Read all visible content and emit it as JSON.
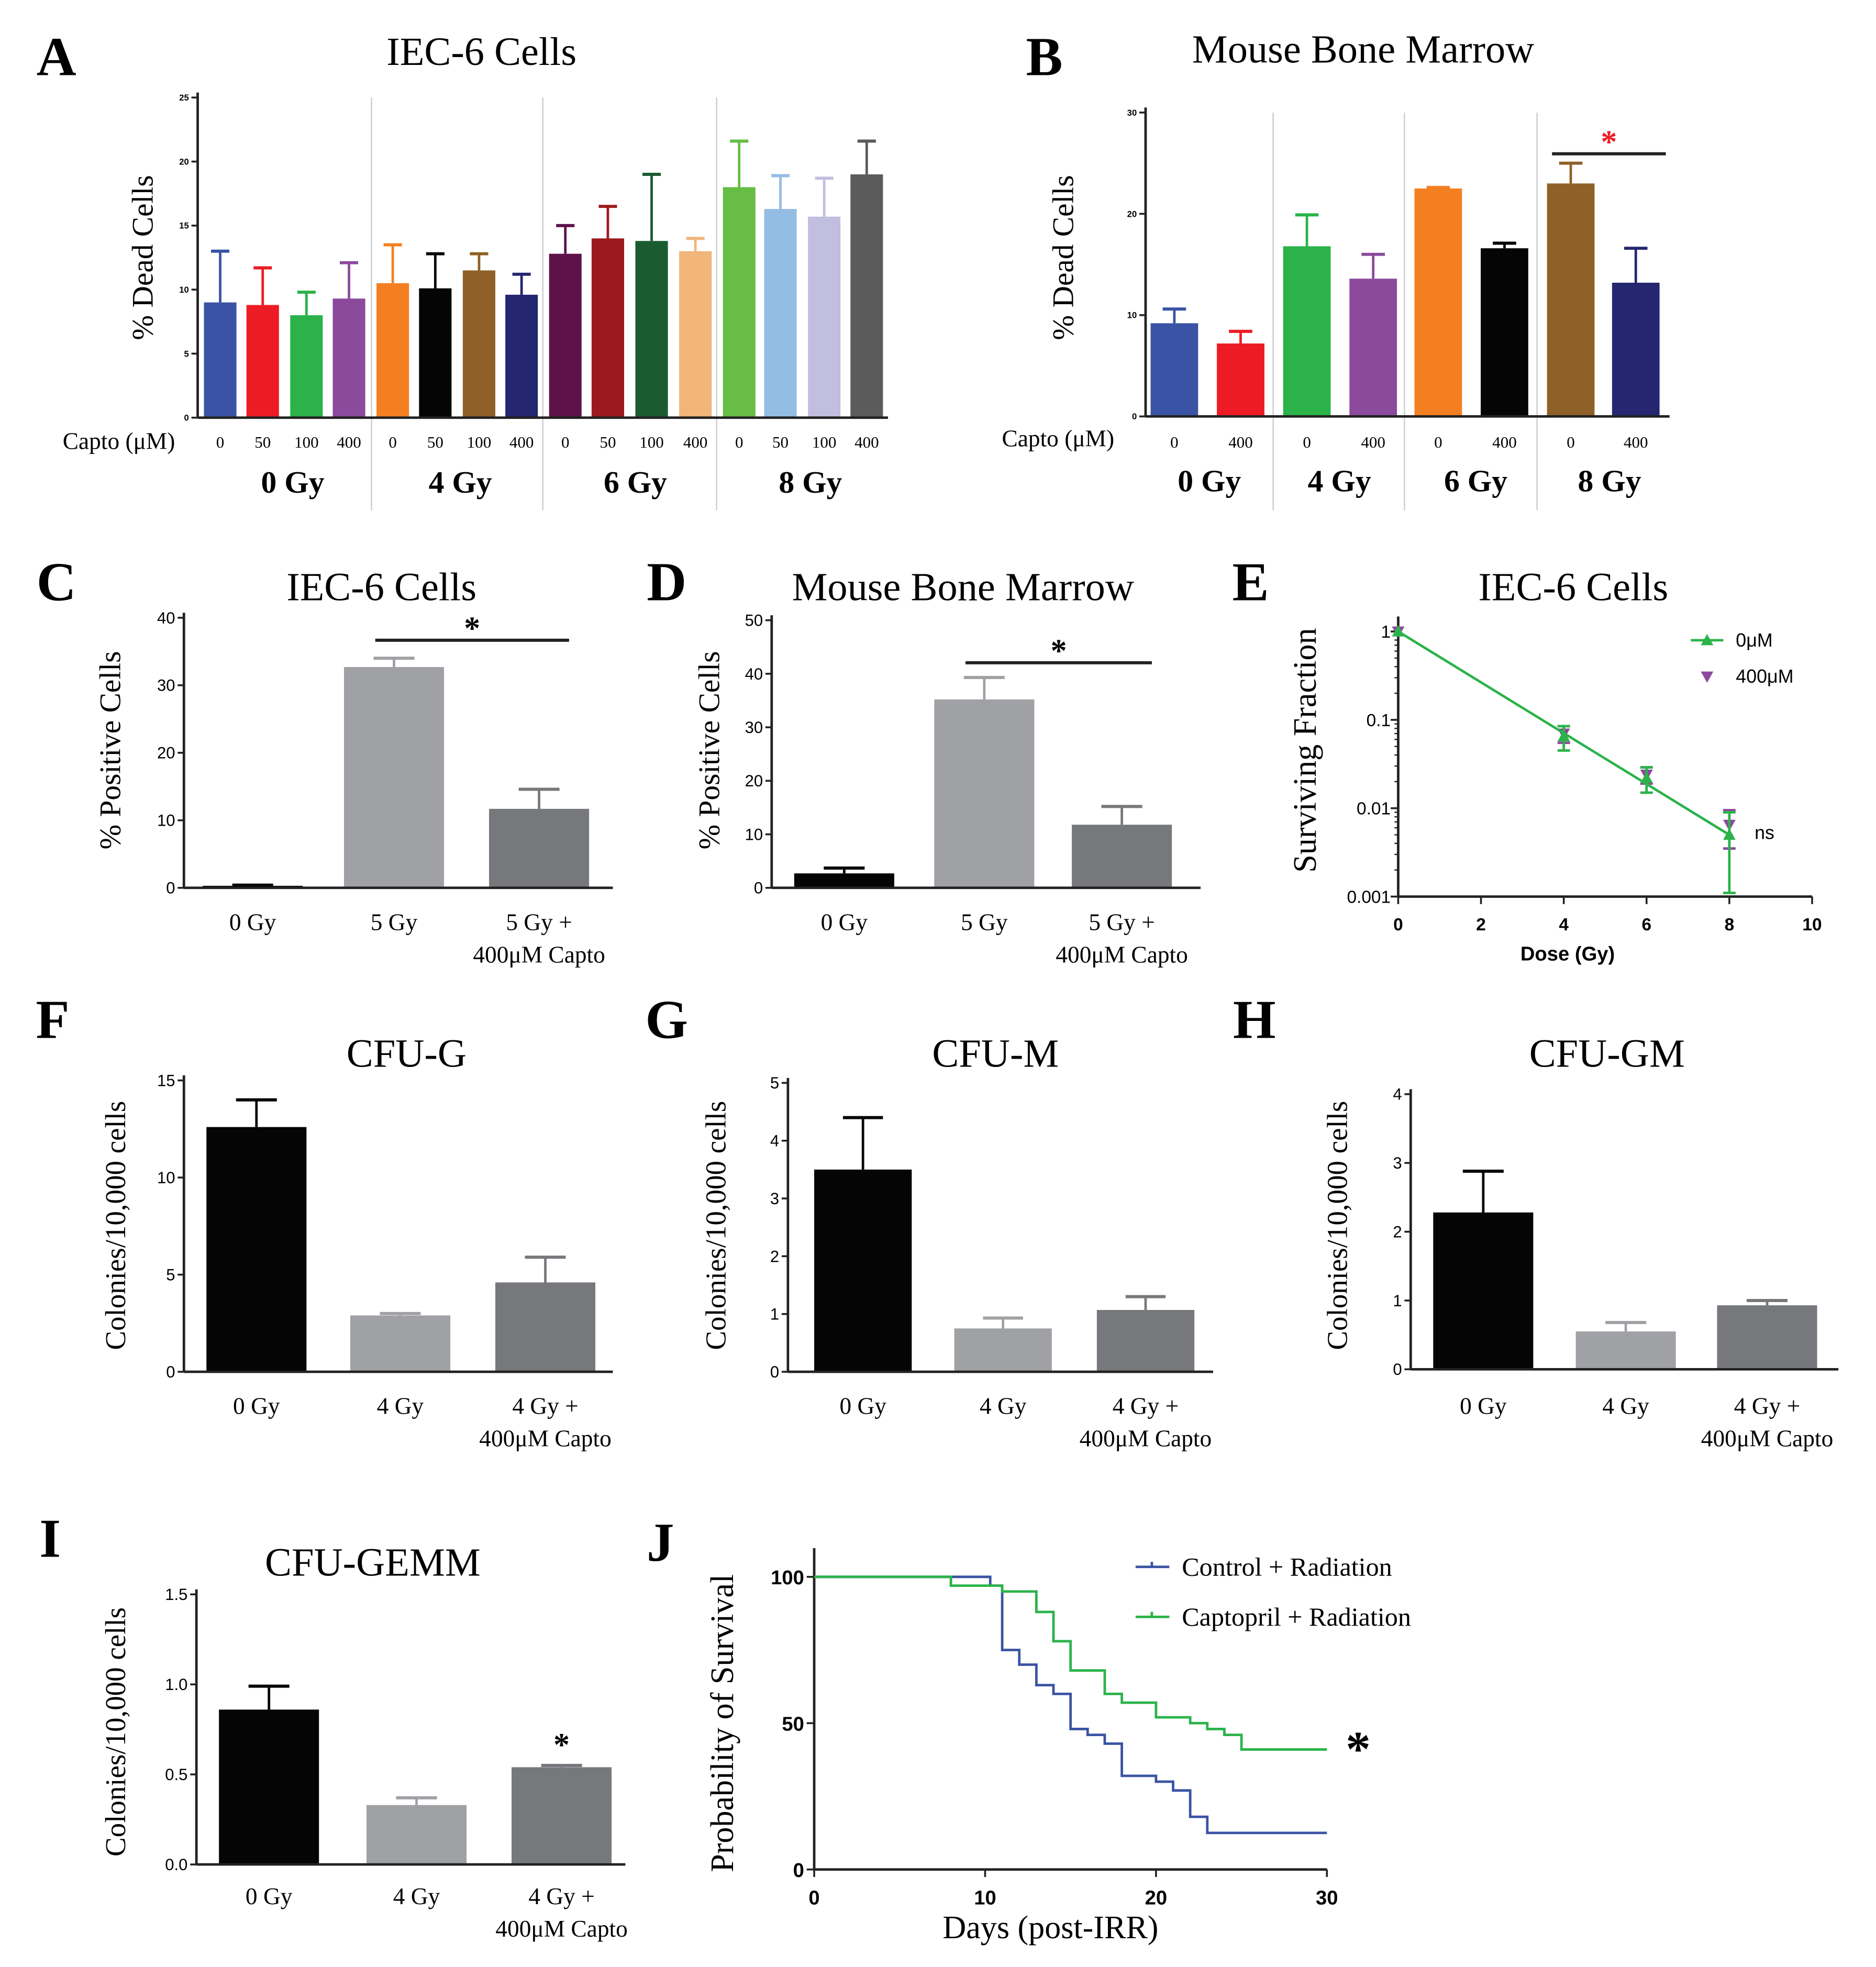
{
  "chart_data": [
    {
      "panel": "A",
      "type": "bar",
      "title": "IEC-6 Cells",
      "ylabel": "% Dead Cells",
      "ylim": [
        0,
        25
      ],
      "yticks": [
        "0",
        "5",
        "10",
        "15",
        "20",
        "25"
      ],
      "capto_label": "Capto (μM)",
      "categories": [
        [
          "0"
        ],
        [
          "50"
        ],
        [
          "100"
        ],
        [
          "400"
        ],
        [
          "0"
        ],
        [
          "50"
        ],
        [
          "100"
        ],
        [
          "400"
        ],
        [
          "0"
        ],
        [
          "50"
        ],
        [
          "100"
        ],
        [
          "400"
        ],
        [
          "0"
        ],
        [
          "50"
        ],
        [
          "100"
        ],
        [
          "400"
        ]
      ],
      "groups": [
        "0 Gy",
        "4 Gy",
        "6 Gy",
        "8 Gy"
      ],
      "values": [
        9.0,
        8.8,
        8.0,
        9.3,
        10.5,
        10.1,
        11.5,
        9.6,
        12.8,
        14.0,
        13.8,
        13.0,
        18.0,
        16.3,
        15.7,
        19.0
      ],
      "errors": [
        4.0,
        2.9,
        1.8,
        2.8,
        3.0,
        2.7,
        1.3,
        1.6,
        2.2,
        2.5,
        5.2,
        1.0,
        3.6,
        2.6,
        3.0,
        2.6
      ],
      "colors": [
        "#3a53a4",
        "#ed1c24",
        "#2bb34a",
        "#8b4a9c",
        "#f47f20",
        "#050505",
        "#8f6128",
        "#242670",
        "#5e1249",
        "#9c1a1f",
        "#1a5b30",
        "#f2b57a",
        "#67bd45",
        "#94bde4",
        "#c1bedf",
        "#5b5b5b"
      ]
    },
    {
      "panel": "B",
      "type": "bar",
      "title": "Mouse Bone Marrow",
      "ylabel": "% Dead Cells",
      "ylim": [
        0,
        30
      ],
      "yticks": [
        "0",
        "10",
        "20",
        "30"
      ],
      "capto_label": "Capto (μM)",
      "categories": [
        [
          "0"
        ],
        [
          "400"
        ],
        [
          "0"
        ],
        [
          "400"
        ],
        [
          "0"
        ],
        [
          "400"
        ],
        [
          "0"
        ],
        [
          "400"
        ]
      ],
      "groups": [
        "0 Gy",
        "4 Gy",
        "6 Gy",
        "8 Gy"
      ],
      "values": [
        9.2,
        7.2,
        16.8,
        13.6,
        22.5,
        16.6,
        23.0,
        13.2
      ],
      "errors": [
        1.4,
        1.2,
        3.1,
        2.4,
        0.1,
        0.5,
        2.0,
        3.4
      ],
      "colors": [
        "#3a53a4",
        "#ed1c24",
        "#2bb34a",
        "#8b4a9c",
        "#f47f20",
        "#050505",
        "#8f6128",
        "#242670"
      ],
      "significance": {
        "from": 6,
        "to": 7,
        "label": "*",
        "color": "#ed1c24"
      }
    },
    {
      "panel": "C",
      "type": "bar",
      "title": "IEC-6 Cells",
      "ylabel": "% Positive Cells",
      "ylim": [
        0,
        40
      ],
      "yticks": [
        "0",
        "10",
        "20",
        "30",
        "40"
      ],
      "categories": [
        [
          "0 Gy"
        ],
        [
          "5 Gy"
        ],
        [
          "5 Gy +",
          "400μM Capto"
        ]
      ],
      "values": [
        0.3,
        32.7,
        11.7
      ],
      "errors": [
        0.1,
        1.3,
        2.9
      ],
      "colors": [
        "#050505",
        "#a0a1a5",
        "#77787b"
      ],
      "significance": {
        "from": 1,
        "to": 2,
        "label": "*",
        "color": "#000000"
      }
    },
    {
      "panel": "D",
      "type": "bar",
      "title": "Mouse Bone Marrow",
      "ylabel": "% Positive Cells",
      "ylim": [
        0,
        50
      ],
      "yticks": [
        "0",
        "10",
        "20",
        "30",
        "40",
        "50"
      ],
      "categories": [
        [
          "0 Gy"
        ],
        [
          "5 Gy"
        ],
        [
          "5 Gy +",
          "400μM Capto"
        ]
      ],
      "values": [
        2.7,
        35.2,
        11.8
      ],
      "errors": [
        1.0,
        4.1,
        3.4
      ],
      "colors": [
        "#050505",
        "#a0a1a5",
        "#77787b"
      ],
      "significance": {
        "from": 1,
        "to": 2,
        "label": "*",
        "color": "#000000"
      }
    },
    {
      "panel": "E",
      "type": "line",
      "title": "IEC-6 Cells",
      "ylabel": "Surviving Fraction",
      "xlabel": "Dose (Gy)",
      "yscale": "log",
      "ylim": [
        0.001,
        1
      ],
      "yticks": [
        "1",
        "0.1",
        "0.01",
        "0.001"
      ],
      "ytick_values": [
        1,
        0.1,
        0.01,
        0.001
      ],
      "xlim": [
        0,
        10
      ],
      "xticks": [
        "0",
        "2",
        "4",
        "6",
        "8",
        "10"
      ],
      "x": [
        0,
        4,
        6,
        8
      ],
      "series": [
        {
          "name": "0μM",
          "values": [
            1.0,
            0.065,
            0.022,
            0.005
          ],
          "errors": [
            0,
            0.02,
            0.007,
            0.004
          ],
          "color": "#2bb34a",
          "marker": "triangle-up"
        },
        {
          "name": "400μM",
          "values": [
            1.0,
            0.07,
            0.024,
            0.0065
          ],
          "errors": [
            0,
            0.015,
            0.005,
            0.003
          ],
          "color": "#8b4a9c",
          "marker": "triangle-down"
        }
      ],
      "annotation": "ns"
    },
    {
      "panel": "F",
      "type": "bar",
      "title": "CFU-G",
      "ylabel": "Colonies/10,000 cells",
      "ylim": [
        0,
        15
      ],
      "yticks": [
        "0",
        "5",
        "10",
        "15"
      ],
      "categories": [
        [
          "0 Gy"
        ],
        [
          "4 Gy"
        ],
        [
          "4 Gy +",
          "400μM Capto"
        ]
      ],
      "values": [
        12.6,
        2.9,
        4.6
      ],
      "errors": [
        1.4,
        0.1,
        1.3
      ],
      "colors": [
        "#050505",
        "#a0a1a5",
        "#77787b"
      ]
    },
    {
      "panel": "G",
      "type": "bar",
      "title": "CFU-M",
      "ylabel": "Colonies/10,000 cells",
      "ylim": [
        0,
        5
      ],
      "yticks": [
        "0",
        "1",
        "2",
        "3",
        "4",
        "5"
      ],
      "categories": [
        [
          "0 Gy"
        ],
        [
          "4 Gy"
        ],
        [
          "4 Gy +",
          "400μM Capto"
        ]
      ],
      "values": [
        3.5,
        0.75,
        1.07
      ],
      "errors": [
        0.9,
        0.18,
        0.23
      ],
      "colors": [
        "#050505",
        "#a0a1a5",
        "#77787b"
      ]
    },
    {
      "panel": "H",
      "type": "bar",
      "title": "CFU-GM",
      "ylabel": "Colonies/10,000 cells",
      "ylim": [
        0,
        4
      ],
      "yticks": [
        "0",
        "1",
        "2",
        "3",
        "4"
      ],
      "categories": [
        [
          "0 Gy"
        ],
        [
          "4 Gy"
        ],
        [
          "4 Gy +",
          "400μM Capto"
        ]
      ],
      "values": [
        2.28,
        0.55,
        0.93
      ],
      "errors": [
        0.6,
        0.13,
        0.07
      ],
      "colors": [
        "#050505",
        "#a0a1a5",
        "#77787b"
      ]
    },
    {
      "panel": "I",
      "type": "bar",
      "title": "CFU-GEMM",
      "ylabel": "Colonies/10,000 cells",
      "ylim": [
        0,
        1.5
      ],
      "yticks": [
        "0.0",
        "0.5",
        "1.0",
        "1.5"
      ],
      "categories": [
        [
          "0 Gy"
        ],
        [
          "4 Gy"
        ],
        [
          "4 Gy +",
          "400μM Capto"
        ]
      ],
      "values": [
        0.86,
        0.33,
        0.54
      ],
      "errors": [
        0.13,
        0.04,
        0.01
      ],
      "colors": [
        "#050505",
        "#a0a1a5",
        "#77787b"
      ],
      "bar_annotation": {
        "index": 2,
        "label": "*"
      }
    },
    {
      "panel": "J",
      "type": "line",
      "title": "",
      "ylabel": "Probability of Survival",
      "xlabel": "Days (post-IRR)",
      "ylim": [
        0,
        100
      ],
      "yticks": [
        "0",
        "50",
        "100"
      ],
      "xlim": [
        0,
        30
      ],
      "xticks": [
        "0",
        "10",
        "20",
        "30"
      ],
      "series": [
        {
          "name": "Control + Radiation",
          "color": "#3a53a4",
          "x": [
            0,
            10.3,
            11,
            12,
            13,
            14,
            15,
            16,
            17,
            18,
            20,
            21,
            22,
            23,
            30
          ],
          "values": [
            100,
            97,
            75,
            70,
            63,
            60,
            48,
            46,
            43,
            32,
            30,
            27,
            18,
            12.5,
            12.5
          ]
        },
        {
          "name": "Captopril + Radiation",
          "color": "#2bb34a",
          "x": [
            0,
            8,
            11,
            13,
            14,
            15,
            17,
            18,
            20,
            22,
            23,
            24,
            25,
            30
          ],
          "values": [
            100,
            97,
            95,
            88,
            78,
            68,
            60,
            57,
            52,
            50,
            48,
            46,
            41,
            41
          ]
        }
      ],
      "annotation": "*"
    }
  ]
}
